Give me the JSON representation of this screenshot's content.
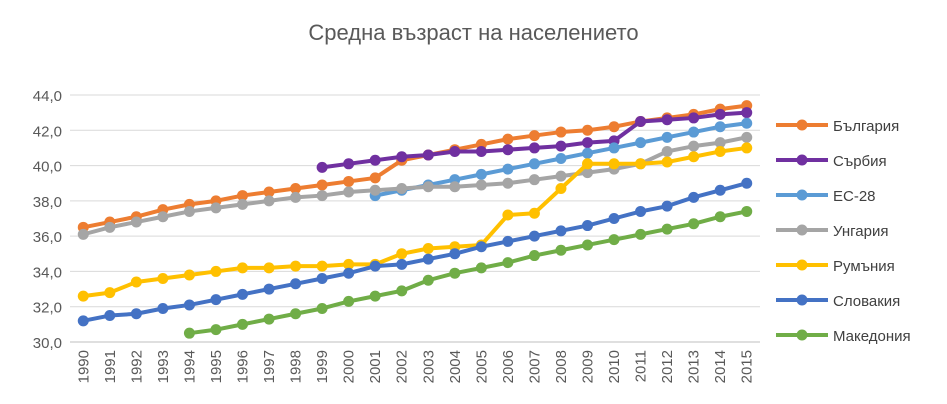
{
  "chart_data": {
    "type": "line",
    "title": "Средна възраст на населението",
    "xlabel": "",
    "ylabel": "",
    "categories": [
      "1990",
      "1991",
      "1992",
      "1993",
      "1994",
      "1995",
      "1996",
      "1997",
      "1998",
      "1999",
      "2000",
      "2001",
      "2002",
      "2003",
      "2004",
      "2005",
      "2006",
      "2007",
      "2008",
      "2009",
      "2010",
      "2011",
      "2012",
      "2013",
      "2014",
      "2015"
    ],
    "y_ticks": [
      "30,0",
      "32,0",
      "34,0",
      "36,0",
      "38,0",
      "40,0",
      "42,0",
      "44,0"
    ],
    "ylim": [
      30,
      44
    ],
    "grid": true,
    "legend_position": "right",
    "series": [
      {
        "name": "България",
        "color": "#ED7D31",
        "values": [
          36.5,
          36.8,
          37.1,
          37.5,
          37.8,
          38.0,
          38.3,
          38.5,
          38.7,
          38.9,
          39.1,
          39.3,
          40.3,
          40.6,
          40.9,
          41.2,
          41.5,
          41.7,
          41.9,
          42.0,
          42.2,
          42.5,
          42.7,
          42.9,
          43.2,
          43.4
        ]
      },
      {
        "name": "Сърбия",
        "color": "#7030A0",
        "values": [
          null,
          null,
          null,
          null,
          null,
          null,
          null,
          null,
          null,
          39.9,
          40.1,
          40.3,
          40.5,
          40.6,
          40.8,
          40.8,
          40.9,
          41.0,
          41.1,
          41.3,
          41.4,
          42.5,
          42.6,
          42.7,
          42.9,
          43.0
        ]
      },
      {
        "name": "ЕС-28",
        "color": "#5B9BD5",
        "values": [
          null,
          null,
          null,
          null,
          null,
          null,
          null,
          null,
          null,
          null,
          null,
          38.3,
          38.6,
          38.9,
          39.2,
          39.5,
          39.8,
          40.1,
          40.4,
          40.7,
          41.0,
          41.3,
          41.6,
          41.9,
          42.2,
          42.4
        ]
      },
      {
        "name": "Унгария",
        "color": "#A5A5A5",
        "values": [
          36.1,
          36.5,
          36.8,
          37.1,
          37.4,
          37.6,
          37.8,
          38.0,
          38.2,
          38.3,
          38.5,
          38.6,
          38.7,
          38.8,
          38.8,
          38.9,
          39.0,
          39.2,
          39.4,
          39.6,
          39.8,
          40.1,
          40.8,
          41.1,
          41.3,
          41.6
        ]
      },
      {
        "name": "Румъния",
        "color": "#FFC000",
        "values": [
          32.6,
          32.8,
          33.4,
          33.6,
          33.8,
          34.0,
          34.2,
          34.2,
          34.3,
          34.3,
          34.4,
          34.4,
          35.0,
          35.3,
          35.4,
          35.5,
          37.2,
          37.3,
          38.7,
          40.1,
          40.1,
          40.1,
          40.2,
          40.5,
          40.8,
          41.0
        ]
      },
      {
        "name": "Словакия",
        "color": "#4472C4",
        "values": [
          31.2,
          31.5,
          31.6,
          31.9,
          32.1,
          32.4,
          32.7,
          33.0,
          33.3,
          33.6,
          33.9,
          34.3,
          34.4,
          34.7,
          35.0,
          35.4,
          35.7,
          36.0,
          36.3,
          36.6,
          37.0,
          37.4,
          37.7,
          38.2,
          38.6,
          39.0
        ]
      },
      {
        "name": "Македония",
        "color": "#70AD47",
        "values": [
          null,
          null,
          null,
          null,
          30.5,
          30.7,
          31.0,
          31.3,
          31.6,
          31.9,
          32.3,
          32.6,
          32.9,
          33.5,
          33.9,
          34.2,
          34.5,
          34.9,
          35.2,
          35.5,
          35.8,
          36.1,
          36.4,
          36.7,
          37.1,
          37.4
        ]
      }
    ]
  }
}
